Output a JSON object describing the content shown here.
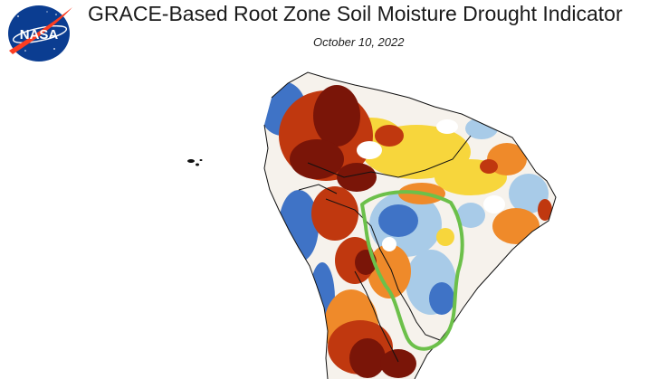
{
  "header": {
    "title": "GRACE-Based Root Zone Soil Moisture Drought Indicator",
    "date": "October 10, 2022",
    "logo_text": "NASA"
  },
  "colors": {
    "nasa_blue": "#0b3d91",
    "nasa_red": "#fc3d21",
    "severe_drought": "#7a1508",
    "drought": "#c0380f",
    "dry": "#ef8a2a",
    "abnormally_dry": "#f7d63c",
    "normal": "#ffffff",
    "moist": "#a8cbe8",
    "wet": "#3f73c6",
    "outline": "#111111",
    "highlight": "#6cc04a"
  },
  "map": {
    "region": "South America",
    "highlighted_area": "green outlined region"
  }
}
